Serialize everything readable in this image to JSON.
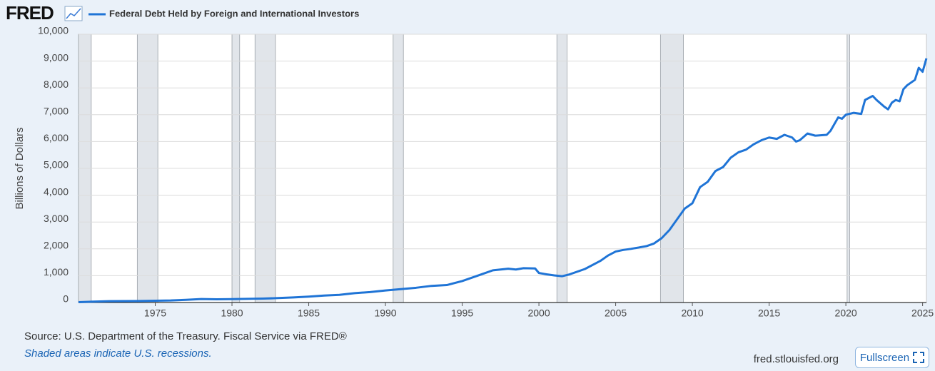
{
  "logo": "FRED",
  "site": "fred.stlouisfed.org",
  "fullscreen_button": "Fullscreen",
  "chart_data": {
    "type": "line",
    "ylabel": "Billions of Dollars",
    "source": "Source: U.S. Department of the Treasury. Fiscal Service via FRED®",
    "note": "Shaded areas indicate U.S. recessions.",
    "xlim": [
      1970,
      2025.25
    ],
    "xticks": [
      1975,
      1980,
      1985,
      1990,
      1995,
      2000,
      2005,
      2010,
      2015,
      2020,
      2025
    ],
    "ylim": [
      0,
      10000
    ],
    "yticks": [
      0,
      {
        "value": 1000,
        "label": "1,000"
      },
      {
        "value": 2000,
        "label": "2,000"
      },
      {
        "value": 3000,
        "label": "3,000"
      },
      {
        "value": 4000,
        "label": "4,000"
      },
      {
        "value": 5000,
        "label": "5,000"
      },
      {
        "value": 6000,
        "label": "6,000"
      },
      {
        "value": 7000,
        "label": "7,000"
      },
      {
        "value": 8000,
        "label": "8,000"
      },
      {
        "value": 9000,
        "label": "9,000"
      },
      {
        "value": 10000,
        "label": "10,000"
      }
    ],
    "grid": true,
    "recessions": [
      [
        1970,
        1970.83
      ],
      [
        1973.83,
        1975.17
      ],
      [
        1980,
        1980.5
      ],
      [
        1981.5,
        1982.83
      ],
      [
        1990.5,
        1991.17
      ],
      [
        2001.17,
        2001.83
      ],
      [
        2007.92,
        2009.42
      ],
      [
        2020.08,
        2020.25
      ]
    ],
    "recession_color": "#e1e5ea",
    "x": [
      1970,
      1972,
      1974,
      1976,
      1977,
      1978,
      1979,
      1980,
      1981,
      1982,
      1983,
      1984,
      1985,
      1986,
      1987,
      1988,
      1989,
      1990,
      1991,
      1992,
      1993,
      1994,
      1995,
      1996,
      1997,
      1998,
      1998.5,
      1999,
      1999.75,
      2000,
      2000.5,
      2001,
      2001.5,
      2002,
      2003,
      2004,
      2004.5,
      2005,
      2005.5,
      2006,
      2006.5,
      2007,
      2007.5,
      2008,
      2008.5,
      2009,
      2009.5,
      2010,
      2010.5,
      2011,
      2011.5,
      2012,
      2012.5,
      2013,
      2013.5,
      2014,
      2014.5,
      2015,
      2015.5,
      2016,
      2016.5,
      2016.75,
      2017,
      2017.5,
      2018,
      2018.75,
      2019,
      2019.5,
      2019.75,
      2020,
      2020.5,
      2021,
      2021.25,
      2021.75,
      2022,
      2022.5,
      2022.75,
      2023,
      2023.25,
      2023.5,
      2023.75,
      2024,
      2024.5,
      2024.75,
      2025,
      2025.25
    ],
    "series": [
      {
        "name": "Federal Debt Held by Foreign and International Investors",
        "color": "#1f74d6",
        "values": [
          14,
          50,
          58,
          75,
          100,
          130,
          120,
          125,
          135,
          145,
          165,
          190,
          220,
          260,
          285,
          350,
          390,
          450,
          500,
          550,
          620,
          650,
          800,
          1000,
          1200,
          1260,
          1230,
          1280,
          1270,
          1100,
          1050,
          1010,
          980,
          1050,
          1250,
          1550,
          1750,
          1900,
          1960,
          2000,
          2050,
          2100,
          2200,
          2400,
          2700,
          3100,
          3500,
          3700,
          4300,
          4500,
          4900,
          5050,
          5400,
          5600,
          5700,
          5900,
          6050,
          6150,
          6100,
          6250,
          6150,
          6000,
          6050,
          6300,
          6220,
          6250,
          6400,
          6900,
          6850,
          7000,
          7070,
          7030,
          7550,
          7700,
          7550,
          7300,
          7200,
          7450,
          7550,
          7500,
          7950,
          8100,
          8300,
          8750,
          8600,
          9100
        ]
      }
    ]
  }
}
